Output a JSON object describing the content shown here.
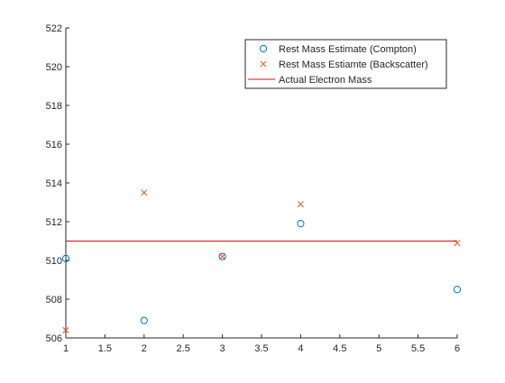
{
  "chart_data": {
    "type": "scatter",
    "title": "",
    "xlabel": "",
    "ylabel": "",
    "xlim": [
      1,
      6
    ],
    "ylim": [
      506,
      522
    ],
    "xticks": [
      "1",
      "1.5",
      "2",
      "2.5",
      "3",
      "3.5",
      "4",
      "4.5",
      "5",
      "5.5",
      "6"
    ],
    "xtick_values": [
      1,
      1.5,
      2,
      2.5,
      3,
      3.5,
      4,
      4.5,
      5,
      5.5,
      6
    ],
    "yticks": [
      "506",
      "508",
      "510",
      "512",
      "514",
      "516",
      "518",
      "520",
      "522"
    ],
    "ytick_values": [
      506,
      508,
      510,
      512,
      514,
      516,
      518,
      520,
      522
    ],
    "grid": false,
    "legend_position": "top-right",
    "series": [
      {
        "name": "Rest Mass Estimate (Compton)",
        "marker": "circle",
        "color": "#0072BD",
        "x": [
          1,
          2,
          3,
          4,
          6
        ],
        "y": [
          510.1,
          506.9,
          510.2,
          511.9,
          508.5
        ]
      },
      {
        "name": "Rest Mass Estiamte (Backscatter)",
        "marker": "x",
        "color": "#D95319",
        "x": [
          1,
          2,
          3,
          4,
          6
        ],
        "y": [
          506.4,
          513.5,
          510.2,
          512.9,
          510.9
        ]
      },
      {
        "name": "Actual Electron Mass",
        "marker": "line",
        "color": "#FF0000",
        "x": [
          1,
          6
        ],
        "y": [
          511,
          511
        ]
      }
    ]
  }
}
